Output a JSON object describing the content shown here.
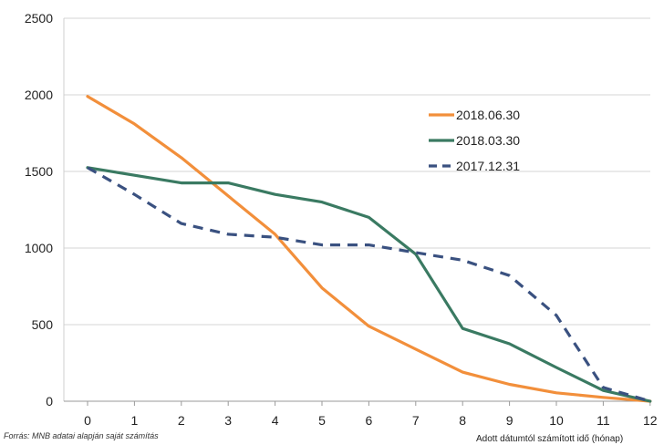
{
  "chart_data": {
    "type": "line",
    "xlabel": "Adott dátumtól számított idő (hónap)",
    "ylabel": "",
    "title": "",
    "x": [
      0,
      1,
      2,
      3,
      4,
      5,
      6,
      7,
      8,
      9,
      10,
      11,
      12
    ],
    "xlim": [
      0,
      12
    ],
    "ylim": [
      0,
      2500
    ],
    "yticks": [
      0,
      500,
      1000,
      1500,
      2000,
      2500
    ],
    "grid": "horizontal",
    "legend_position": "right",
    "series": [
      {
        "name": "2018.06.30",
        "color": "#F28F3B",
        "style": "solid",
        "values": [
          1990,
          1810,
          1590,
          1340,
          1090,
          740,
          490,
          340,
          190,
          110,
          55,
          25,
          0
        ]
      },
      {
        "name": "2018.03.30",
        "color": "#3A7A62",
        "style": "solid",
        "values": [
          1525,
          1475,
          1425,
          1425,
          1350,
          1300,
          1200,
          960,
          475,
          375,
          220,
          70,
          0
        ]
      },
      {
        "name": "2017.12.31",
        "color": "#3A5180",
        "style": "dashed",
        "values": [
          1525,
          1350,
          1160,
          1090,
          1070,
          1020,
          1020,
          970,
          920,
          820,
          560,
          90,
          0
        ]
      }
    ]
  },
  "source_note": "Forrás: MNB adatai alapján saját számítás"
}
